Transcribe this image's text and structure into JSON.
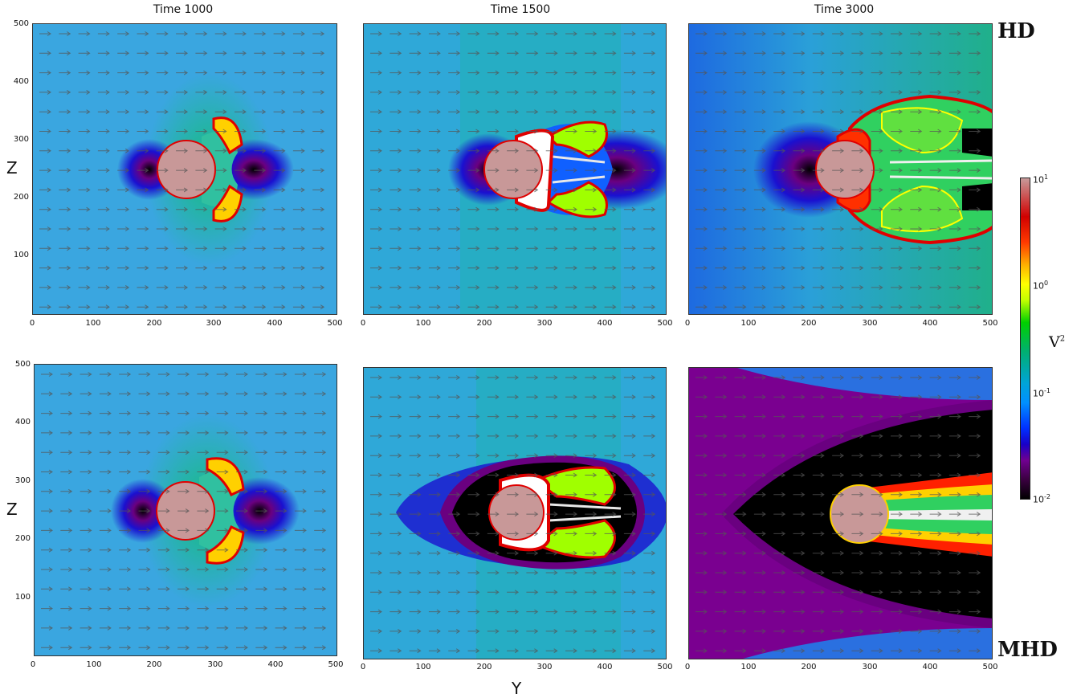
{
  "columns": [
    "Time  1000",
    "Time  1500",
    "Time  3000"
  ],
  "rows": [
    "HD",
    "MHD"
  ],
  "x_axis_label": "Y",
  "y_axis_label": "Z",
  "x_ticks": [
    "0",
    "100",
    "200",
    "300",
    "400",
    "500"
  ],
  "y_ticks": [
    "500",
    "400",
    "300",
    "200",
    "100"
  ],
  "colorbar": {
    "label_base": "V",
    "label_exp": "2",
    "ticks": [
      {
        "base": "10",
        "exp": "1"
      },
      {
        "base": "10",
        "exp": "0"
      },
      {
        "base": "10",
        "exp": "-1"
      },
      {
        "base": "10",
        "exp": "-2"
      }
    ]
  },
  "colors": {
    "background_field": "#3aa6e0",
    "cloud": "#c89898",
    "void": "#000000",
    "halo": "#6a0080"
  }
}
